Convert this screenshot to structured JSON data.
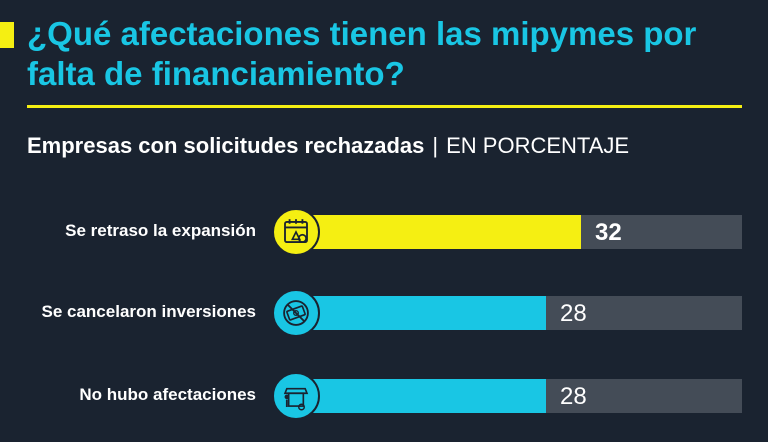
{
  "title": "¿Qué afectaciones tienen las mipymes por falta de financiamiento?",
  "subtitle": {
    "main": "Empresas con solicitudes rechazadas",
    "separator": "|",
    "unit": "EN PORCENTAJE"
  },
  "colors": {
    "background": "#1a2330",
    "title": "#19c6e4",
    "accent_yellow": "#f5ef12",
    "bar_cyan": "#19c6e4",
    "track": "#444c57"
  },
  "chart_data": {
    "type": "bar",
    "orientation": "horizontal",
    "title": "Empresas con solicitudes rechazadas",
    "unit": "EN PORCENTAJE",
    "xlim": [
      0,
      50
    ],
    "grid": false,
    "legend": "none",
    "categories": [
      "Se retraso la expansión",
      "Se cancelaron inversiones",
      "No hubo afectaciones"
    ],
    "values": [
      32,
      28,
      28
    ],
    "bars": [
      {
        "label": "Se retraso la expansión",
        "value": 32,
        "value_label": "32",
        "color": "#f5ef12",
        "icon": "calendar-alert-icon"
      },
      {
        "label": "Se cancelaron inversiones",
        "value": 28,
        "value_label": "28",
        "color": "#19c6e4",
        "icon": "no-money-icon"
      },
      {
        "label": "No hubo afectaciones",
        "value": 28,
        "value_label": "28",
        "color": "#19c6e4",
        "icon": "shop-person-icon"
      }
    ]
  }
}
